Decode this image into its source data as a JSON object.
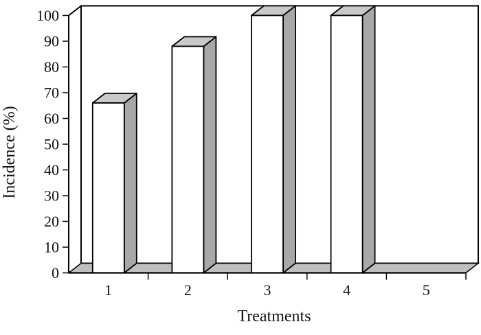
{
  "page": {
    "background": "#ffffff"
  },
  "chart_data": {
    "type": "bar",
    "style": "3d-column",
    "title": "",
    "xlabel": "Treatments",
    "ylabel": "Incidence (%)",
    "categories": [
      "1",
      "2",
      "3",
      "4",
      "5"
    ],
    "values": [
      66,
      88,
      100,
      100,
      0
    ],
    "ylim": [
      0,
      100
    ],
    "ytick_step": 10,
    "yticks": [
      "0",
      "10",
      "20",
      "30",
      "40",
      "50",
      "60",
      "70",
      "80",
      "90",
      "100"
    ],
    "grid": false,
    "legend": false,
    "colors": {
      "bar_front": "#ffffff",
      "bar_top": "#c9c9c9",
      "bar_side": "#a8a8a8",
      "floor": "#bfbfbf",
      "wall": "#ffffff",
      "outline": "#000000",
      "text": "#0f0f0f"
    }
  }
}
